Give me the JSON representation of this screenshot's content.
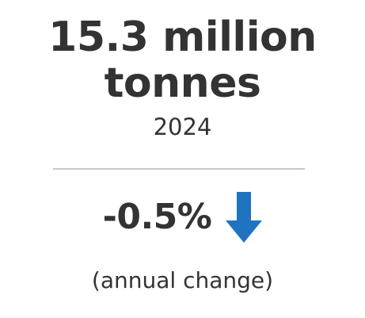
{
  "headline": {
    "line1": "15.3 million",
    "line2": "tonnes"
  },
  "year": "2024",
  "change": {
    "value": "-0.5%",
    "direction_icon": "arrow-down-icon",
    "caption": "(annual change)"
  },
  "colors": {
    "text": "#333333",
    "divider": "#c8c8c8",
    "arrow": "#1f73c1"
  }
}
